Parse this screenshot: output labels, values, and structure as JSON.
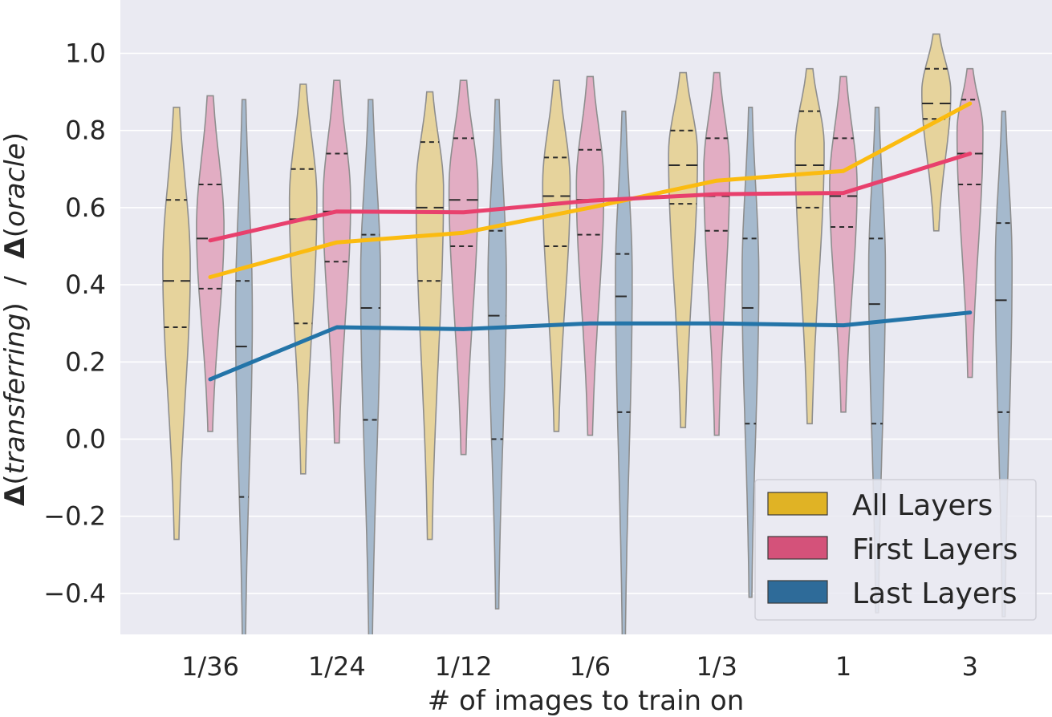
{
  "chart_data": {
    "type": "violin+line",
    "xlabel": "# of images to train on",
    "ylabel_parts": [
      {
        "text": "Δ",
        "bold": true
      },
      {
        "text": "(",
        "italic": false
      },
      {
        "text": "transferring",
        "italic": true
      },
      {
        "text": ")  /  ",
        "italic": false
      },
      {
        "text": "Δ",
        "bold": true
      },
      {
        "text": "(",
        "italic": false
      },
      {
        "text": "oracle",
        "italic": true
      },
      {
        "text": ")",
        "italic": false
      }
    ],
    "categories": [
      "1/36",
      "1/24",
      "1/12",
      "1/6",
      "1/3",
      "1",
      "3"
    ],
    "ylim": [
      -0.5,
      1.12
    ],
    "yticks": [
      -0.4,
      -0.2,
      0.0,
      0.2,
      0.4,
      0.6,
      0.8,
      1.0
    ],
    "ytick_labels": [
      "−0.4",
      "−0.2",
      "0.0",
      "0.2",
      "0.4",
      "0.6",
      "0.8",
      "1.0"
    ],
    "grid": true,
    "legend_position": "bottom-right",
    "series": [
      {
        "name": "All Layers",
        "violin_color": "#e6d39c",
        "legend_color": "#e0b325",
        "line_color": "#fbbb10",
        "line_values": [
          0.42,
          0.51,
          0.535,
          0.6,
          0.67,
          0.695,
          0.87
        ],
        "violins": [
          {
            "min": -0.26,
            "max": 0.86,
            "q1": 0.29,
            "median": 0.41,
            "q3": 0.62,
            "mode": 0.45,
            "halfwidth": 0.9
          },
          {
            "min": -0.09,
            "max": 0.92,
            "q1": 0.3,
            "median": 0.57,
            "q3": 0.7,
            "mode": 0.62,
            "halfwidth": 0.9
          },
          {
            "min": -0.26,
            "max": 0.9,
            "q1": 0.41,
            "median": 0.6,
            "q3": 0.77,
            "mode": 0.65,
            "halfwidth": 0.9
          },
          {
            "min": 0.02,
            "max": 0.93,
            "q1": 0.5,
            "median": 0.63,
            "q3": 0.73,
            "mode": 0.66,
            "halfwidth": 0.9
          },
          {
            "min": 0.03,
            "max": 0.95,
            "q1": 0.61,
            "median": 0.71,
            "q3": 0.8,
            "mode": 0.74,
            "halfwidth": 0.95
          },
          {
            "min": 0.04,
            "max": 0.96,
            "q1": 0.6,
            "median": 0.71,
            "q3": 0.85,
            "mode": 0.76,
            "halfwidth": 0.95
          },
          {
            "min": 0.54,
            "max": 1.05,
            "q1": 0.83,
            "median": 0.87,
            "q3": 0.96,
            "mode": 0.9,
            "halfwidth": 0.95
          }
        ]
      },
      {
        "name": "First Layers",
        "violin_color": "#e2adc3",
        "legend_color": "#d4527a",
        "line_color": "#e8406d",
        "line_values": [
          0.515,
          0.59,
          0.588,
          0.618,
          0.635,
          0.638,
          0.74
        ],
        "violins": [
          {
            "min": 0.02,
            "max": 0.89,
            "q1": 0.39,
            "median": 0.52,
            "q3": 0.66,
            "mode": 0.55,
            "halfwidth": 0.9
          },
          {
            "min": -0.01,
            "max": 0.93,
            "q1": 0.46,
            "median": 0.59,
            "q3": 0.74,
            "mode": 0.62,
            "halfwidth": 0.9
          },
          {
            "min": -0.04,
            "max": 0.93,
            "q1": 0.5,
            "median": 0.62,
            "q3": 0.78,
            "mode": 0.65,
            "halfwidth": 0.95
          },
          {
            "min": 0.01,
            "max": 0.94,
            "q1": 0.53,
            "median": 0.62,
            "q3": 0.75,
            "mode": 0.66,
            "halfwidth": 0.9
          },
          {
            "min": 0.01,
            "max": 0.95,
            "q1": 0.54,
            "median": 0.63,
            "q3": 0.78,
            "mode": 0.7,
            "halfwidth": 0.85
          },
          {
            "min": 0.07,
            "max": 0.94,
            "q1": 0.55,
            "median": 0.63,
            "q3": 0.78,
            "mode": 0.66,
            "halfwidth": 0.9
          },
          {
            "min": 0.16,
            "max": 0.96,
            "q1": 0.66,
            "median": 0.74,
            "q3": 0.88,
            "mode": 0.8,
            "halfwidth": 0.85
          }
        ]
      },
      {
        "name": "Last Layers",
        "violin_color": "#a5b9cd",
        "legend_color": "#2e6b99",
        "line_color": "#2374a8",
        "line_values": [
          0.155,
          0.29,
          0.285,
          0.3,
          0.3,
          0.295,
          0.328
        ],
        "violins": [
          {
            "min": -0.55,
            "max": 0.88,
            "q1": -0.15,
            "median": 0.24,
            "q3": 0.41,
            "mode": 0.33,
            "halfwidth": 0.55
          },
          {
            "min": -0.55,
            "max": 0.88,
            "q1": 0.05,
            "median": 0.34,
            "q3": 0.53,
            "mode": 0.42,
            "halfwidth": 0.65
          },
          {
            "min": -0.44,
            "max": 0.88,
            "q1": 0.0,
            "median": 0.32,
            "q3": 0.54,
            "mode": 0.42,
            "halfwidth": 0.6
          },
          {
            "min": -0.55,
            "max": 0.85,
            "q1": 0.07,
            "median": 0.37,
            "q3": 0.48,
            "mode": 0.42,
            "halfwidth": 0.55
          },
          {
            "min": -0.41,
            "max": 0.86,
            "q1": 0.04,
            "median": 0.34,
            "q3": 0.52,
            "mode": 0.42,
            "halfwidth": 0.55
          },
          {
            "min": -0.45,
            "max": 0.86,
            "q1": 0.04,
            "median": 0.35,
            "q3": 0.52,
            "mode": 0.44,
            "halfwidth": 0.55
          },
          {
            "min": -0.46,
            "max": 0.85,
            "q1": 0.07,
            "median": 0.36,
            "q3": 0.56,
            "mode": 0.45,
            "halfwidth": 0.55
          }
        ]
      }
    ]
  }
}
